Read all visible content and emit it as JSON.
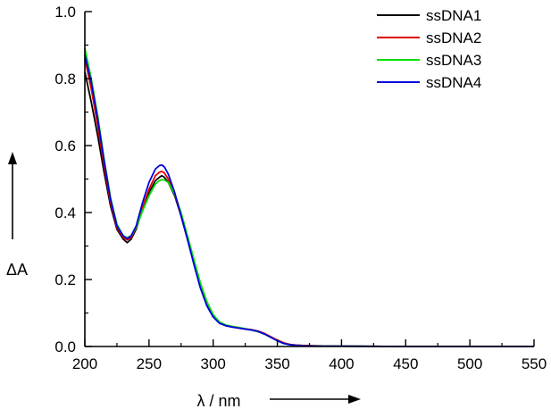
{
  "chart_data": {
    "type": "line",
    "title": "",
    "xlabel": "λ / nm",
    "ylabel": "ΔA",
    "xlim": [
      200,
      550
    ],
    "ylim": [
      0.0,
      1.0
    ],
    "x_ticks": [
      200,
      250,
      300,
      350,
      400,
      450,
      500,
      550
    ],
    "x_tick_labels": [
      "200",
      "250",
      "300",
      "350",
      "400",
      "450",
      "500",
      "550"
    ],
    "y_ticks": [
      0.0,
      0.2,
      0.4,
      0.6,
      0.8,
      1.0
    ],
    "y_tick_labels": [
      "0.0",
      "0.2",
      "0.4",
      "0.6",
      "0.8",
      "1.0"
    ],
    "grid": false,
    "legend_position": "top-right",
    "series": [
      {
        "name": "ssDNA1",
        "color": "#000000",
        "x": [
          200,
          205,
          210,
          215,
          220,
          225,
          230,
          233,
          236,
          240,
          245,
          250,
          255,
          258,
          260,
          262,
          265,
          270,
          275,
          280,
          285,
          290,
          295,
          300,
          305,
          310,
          315,
          320,
          325,
          330,
          335,
          340,
          345,
          350,
          355,
          360,
          365,
          370,
          380,
          400,
          450,
          500,
          550
        ],
        "values": [
          0.82,
          0.73,
          0.63,
          0.52,
          0.42,
          0.35,
          0.32,
          0.31,
          0.32,
          0.35,
          0.41,
          0.46,
          0.495,
          0.505,
          0.51,
          0.505,
          0.49,
          0.45,
          0.39,
          0.32,
          0.25,
          0.18,
          0.125,
          0.09,
          0.07,
          0.062,
          0.058,
          0.055,
          0.052,
          0.05,
          0.045,
          0.038,
          0.028,
          0.018,
          0.01,
          0.006,
          0.004,
          0.003,
          0.002,
          0.001,
          0.0,
          0.0,
          0.0
        ]
      },
      {
        "name": "ssDNA2",
        "color": "#e00000",
        "x": [
          200,
          205,
          210,
          215,
          220,
          225,
          230,
          233,
          236,
          240,
          245,
          250,
          255,
          258,
          260,
          262,
          265,
          270,
          275,
          280,
          285,
          290,
          295,
          300,
          305,
          310,
          315,
          320,
          325,
          330,
          335,
          340,
          345,
          350,
          355,
          360,
          365,
          370,
          380,
          400,
          450,
          500,
          550
        ],
        "values": [
          0.86,
          0.77,
          0.66,
          0.54,
          0.43,
          0.355,
          0.325,
          0.318,
          0.325,
          0.355,
          0.415,
          0.47,
          0.51,
          0.52,
          0.523,
          0.518,
          0.5,
          0.455,
          0.39,
          0.32,
          0.25,
          0.18,
          0.125,
          0.09,
          0.07,
          0.063,
          0.059,
          0.056,
          0.053,
          0.05,
          0.046,
          0.039,
          0.029,
          0.019,
          0.011,
          0.006,
          0.004,
          0.003,
          0.002,
          0.001,
          0.0,
          0.0,
          0.0
        ]
      },
      {
        "name": "ssDNA3",
        "color": "#00e000",
        "x": [
          200,
          205,
          210,
          215,
          220,
          225,
          230,
          233,
          236,
          240,
          245,
          250,
          255,
          258,
          260,
          262,
          265,
          270,
          275,
          280,
          285,
          290,
          295,
          300,
          305,
          310,
          315,
          320,
          325,
          330,
          335,
          340,
          345,
          350,
          355,
          360,
          365,
          370,
          380,
          400,
          450,
          500,
          550
        ],
        "values": [
          0.89,
          0.8,
          0.69,
          0.56,
          0.445,
          0.365,
          0.33,
          0.325,
          0.33,
          0.355,
          0.405,
          0.45,
          0.485,
          0.495,
          0.498,
          0.497,
          0.49,
          0.455,
          0.4,
          0.33,
          0.26,
          0.19,
          0.135,
          0.095,
          0.073,
          0.064,
          0.06,
          0.057,
          0.053,
          0.049,
          0.044,
          0.037,
          0.027,
          0.017,
          0.009,
          0.005,
          0.003,
          0.002,
          0.001,
          0.001,
          0.0,
          0.0,
          0.0
        ]
      },
      {
        "name": "ssDNA4",
        "color": "#0000e0",
        "x": [
          200,
          205,
          210,
          215,
          220,
          225,
          230,
          233,
          236,
          240,
          245,
          250,
          255,
          258,
          260,
          262,
          265,
          270,
          275,
          280,
          285,
          290,
          295,
          300,
          305,
          310,
          315,
          320,
          325,
          330,
          335,
          340,
          345,
          350,
          355,
          360,
          365,
          370,
          380,
          400,
          450,
          500,
          550
        ],
        "values": [
          0.87,
          0.79,
          0.68,
          0.555,
          0.44,
          0.36,
          0.33,
          0.322,
          0.33,
          0.36,
          0.43,
          0.49,
          0.53,
          0.54,
          0.542,
          0.536,
          0.515,
          0.46,
          0.39,
          0.32,
          0.245,
          0.175,
          0.122,
          0.088,
          0.069,
          0.062,
          0.058,
          0.055,
          0.052,
          0.049,
          0.045,
          0.037,
          0.027,
          0.017,
          0.009,
          0.005,
          0.003,
          0.002,
          0.001,
          0.001,
          0.0,
          0.0,
          0.0
        ]
      }
    ]
  }
}
